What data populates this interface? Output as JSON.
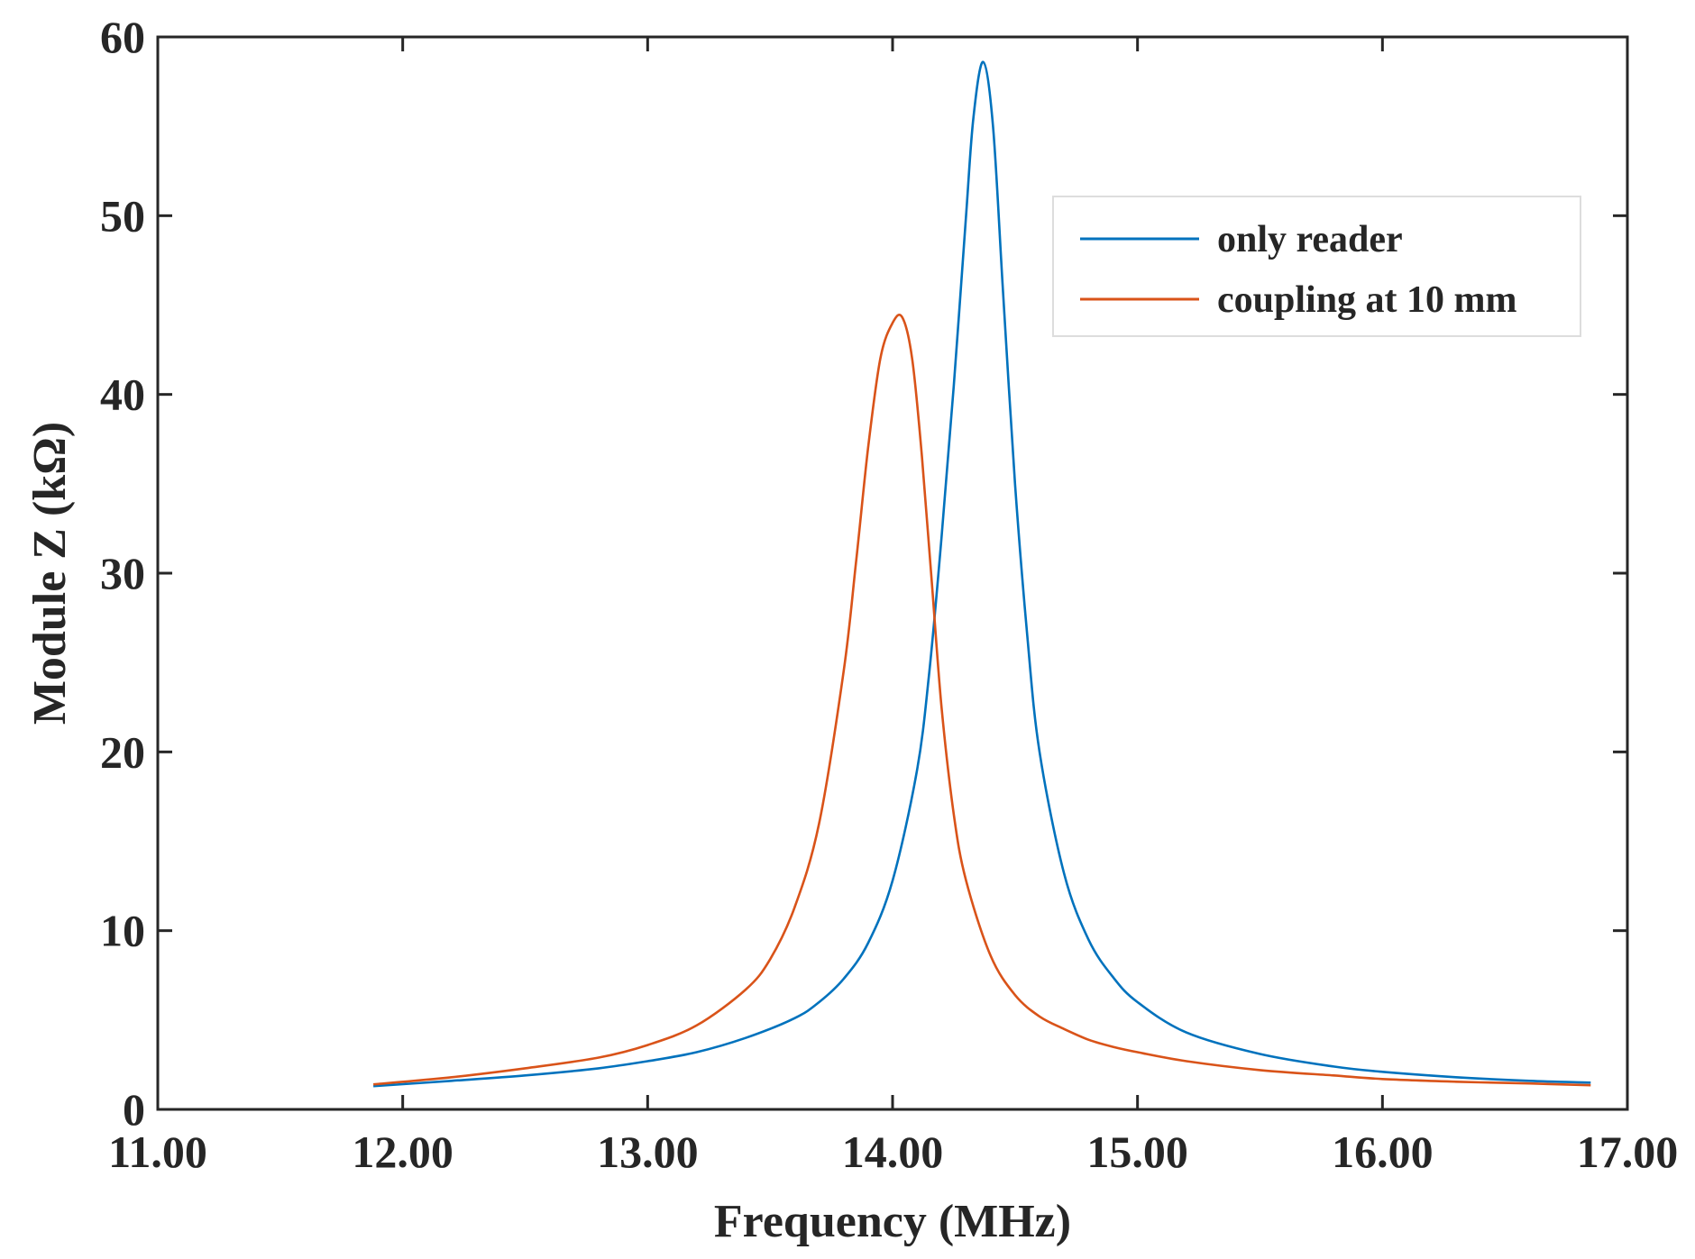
{
  "chart_data": {
    "type": "line",
    "xlabel": "Frequency (MHz)",
    "ylabel": "Module Z (kΩ)",
    "xlim": [
      11.0,
      17.0
    ],
    "ylim": [
      0,
      60
    ],
    "xticks": [
      11.0,
      12.0,
      13.0,
      14.0,
      15.0,
      16.0,
      17.0
    ],
    "xtick_labels": [
      "11.00",
      "12.00",
      "13.00",
      "14.00",
      "15.00",
      "16.00",
      "17.00"
    ],
    "yticks": [
      0,
      10,
      20,
      30,
      40,
      50,
      60
    ],
    "ytick_labels": [
      "0",
      "10",
      "20",
      "30",
      "40",
      "50",
      "60"
    ],
    "grid": false,
    "legend_position": "top-right",
    "series": [
      {
        "name": "only reader",
        "color": "#0072BD",
        "x": [
          11.88,
          12.2,
          12.5,
          12.8,
          13.0,
          13.2,
          13.4,
          13.6,
          13.7,
          13.8,
          13.9,
          14.0,
          14.1,
          14.15,
          14.2,
          14.25,
          14.3,
          14.33,
          14.37,
          14.41,
          14.45,
          14.5,
          14.55,
          14.6,
          14.7,
          14.8,
          14.9,
          15.0,
          15.2,
          15.5,
          15.8,
          16.0,
          16.3,
          16.6,
          16.85
        ],
        "y": [
          1.3,
          1.6,
          1.9,
          2.3,
          2.7,
          3.2,
          4.0,
          5.1,
          6.0,
          7.3,
          9.3,
          12.8,
          19.0,
          24.5,
          32.0,
          40.5,
          50.0,
          55.5,
          58.6,
          55.0,
          46.0,
          35.0,
          26.5,
          20.0,
          13.2,
          9.5,
          7.4,
          6.0,
          4.3,
          3.1,
          2.4,
          2.1,
          1.8,
          1.6,
          1.5
        ]
      },
      {
        "name": "coupling at 10 mm",
        "color": "#D95319",
        "x": [
          11.88,
          12.2,
          12.5,
          12.8,
          13.0,
          13.2,
          13.4,
          13.5,
          13.6,
          13.7,
          13.8,
          13.85,
          13.9,
          13.95,
          14.0,
          14.04,
          14.08,
          14.12,
          14.16,
          14.2,
          14.25,
          14.3,
          14.4,
          14.5,
          14.6,
          14.7,
          14.8,
          14.9,
          15.0,
          15.2,
          15.5,
          15.8,
          16.0,
          16.3,
          16.6,
          16.85
        ],
        "y": [
          1.4,
          1.8,
          2.3,
          2.9,
          3.6,
          4.7,
          6.7,
          8.4,
          11.3,
          16.0,
          24.5,
          30.5,
          37.0,
          42.0,
          44.0,
          44.3,
          42.0,
          36.5,
          29.5,
          22.5,
          16.5,
          12.8,
          8.6,
          6.4,
          5.2,
          4.5,
          3.9,
          3.5,
          3.2,
          2.7,
          2.2,
          1.9,
          1.7,
          1.55,
          1.45,
          1.35
        ]
      }
    ]
  }
}
